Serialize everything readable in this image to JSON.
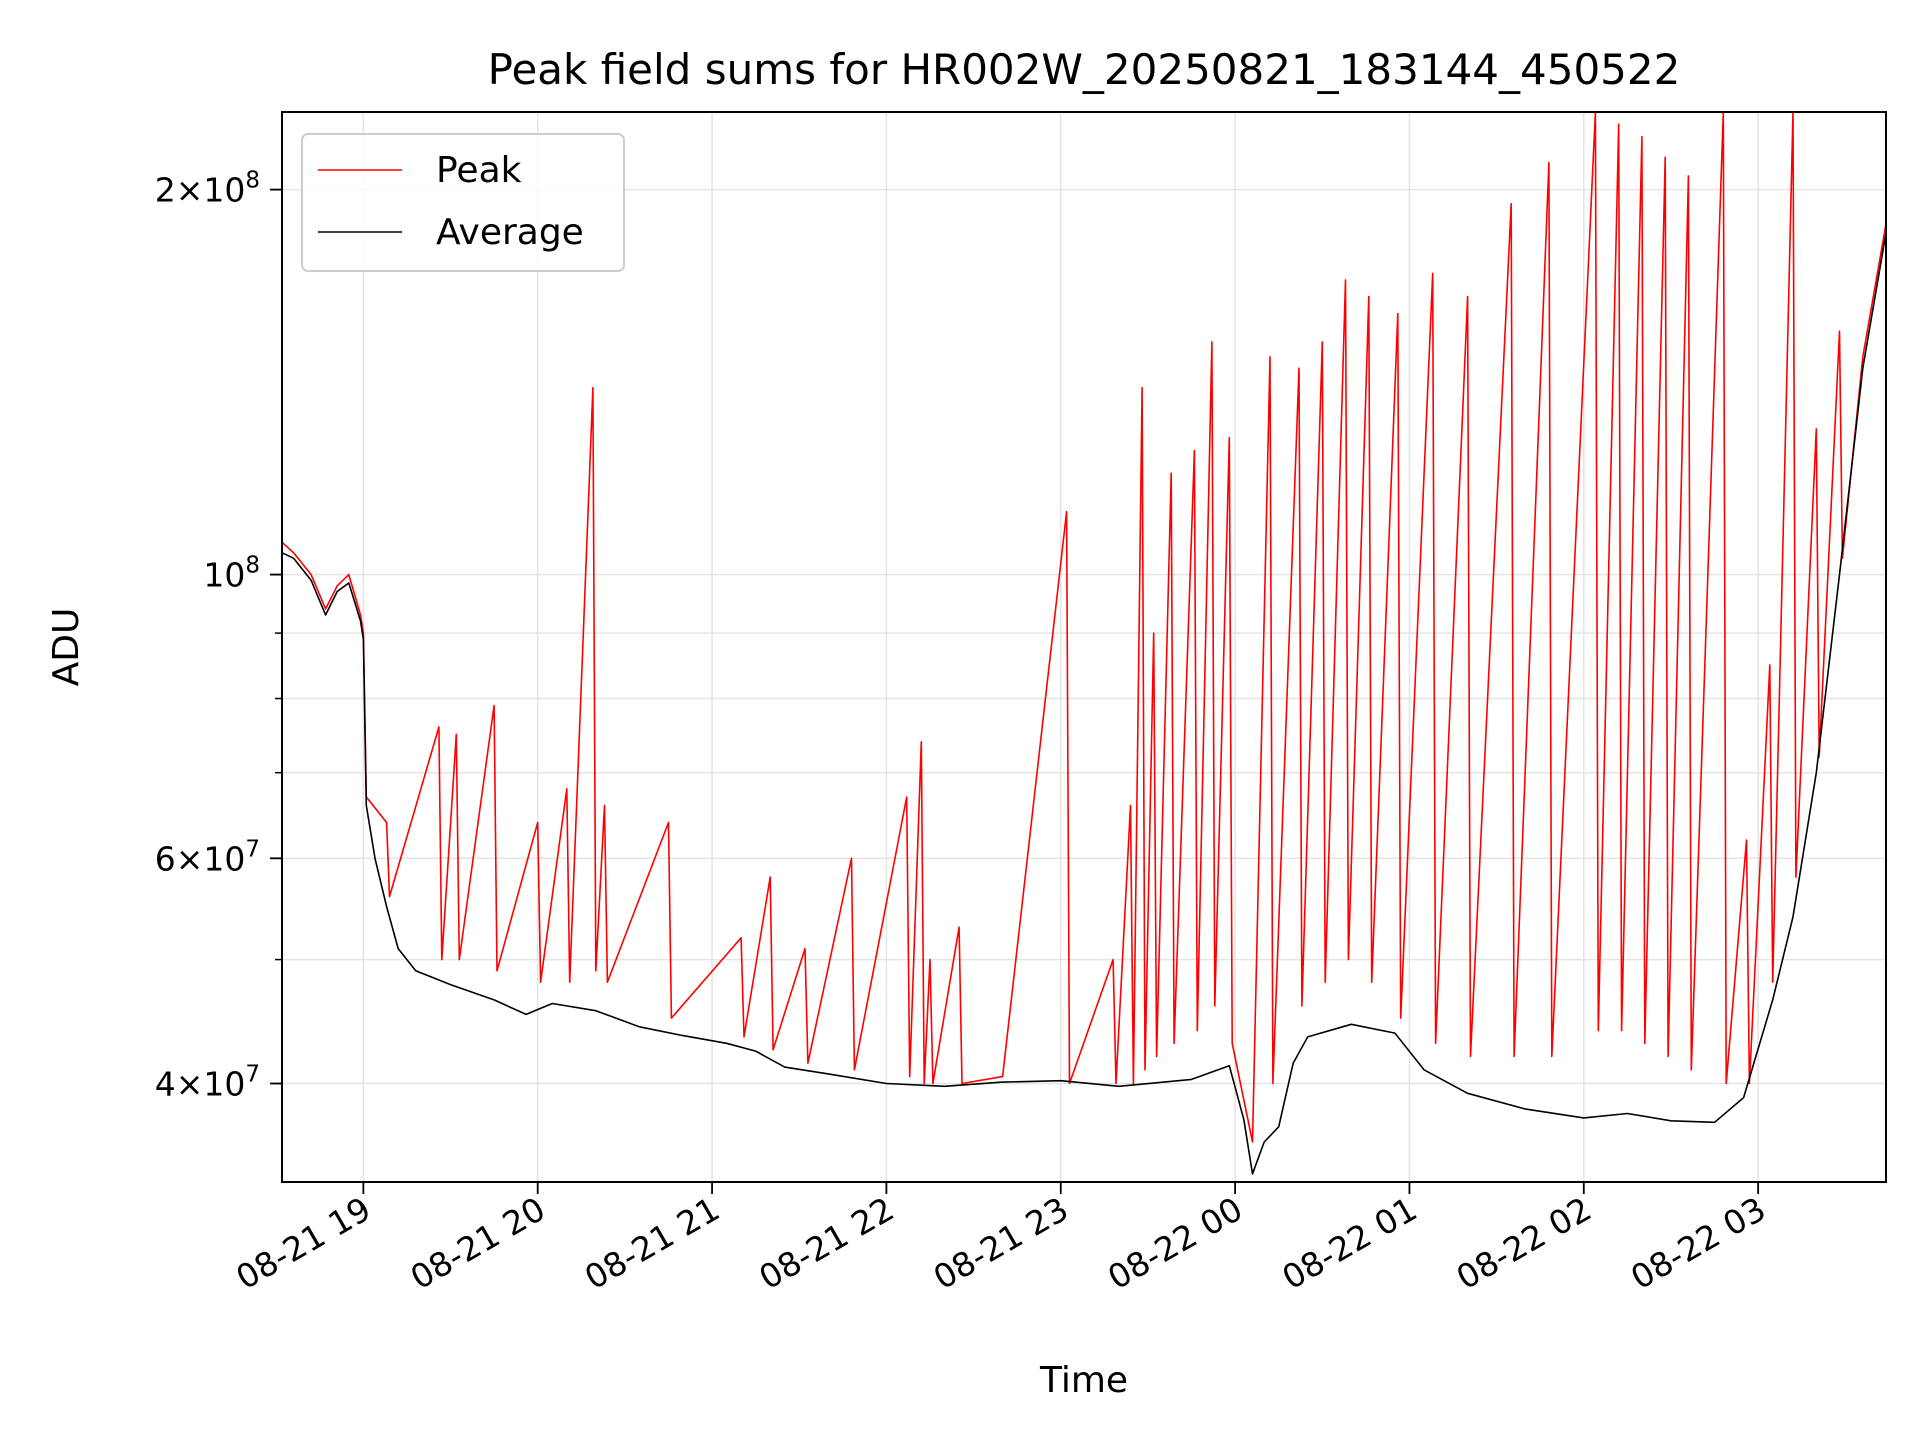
{
  "chart_data": {
    "type": "line",
    "title": "Peak field sums for HR002W_20250821_183144_450522",
    "xlabel": "Time",
    "ylabel": "ADU",
    "yscale": "log",
    "ylim": [
      33500000,
      230000000
    ],
    "xlim": [
      "2025-08-21 18:32",
      "2025-08-22 03:44"
    ],
    "grid": true,
    "legend_position": "top-left",
    "x_ticks": [
      {
        "label": "08-21 19",
        "time": "2025-08-21 19:00"
      },
      {
        "label": "08-21 20",
        "time": "2025-08-21 20:00"
      },
      {
        "label": "08-21 21",
        "time": "2025-08-21 21:00"
      },
      {
        "label": "08-21 22",
        "time": "2025-08-21 22:00"
      },
      {
        "label": "08-21 23",
        "time": "2025-08-21 23:00"
      },
      {
        "label": "08-22 00",
        "time": "2025-08-22 00:00"
      },
      {
        "label": "08-22 01",
        "time": "2025-08-22 01:00"
      },
      {
        "label": "08-22 02",
        "time": "2025-08-22 02:00"
      },
      {
        "label": "08-22 03",
        "time": "2025-08-22 03:00"
      }
    ],
    "y_ticks": [
      {
        "value": 40000000,
        "mant": "4",
        "exp": "7"
      },
      {
        "value": 60000000,
        "mant": "6",
        "exp": "7"
      },
      {
        "value": 100000000,
        "mant": "",
        "exp": "8"
      },
      {
        "value": 200000000,
        "mant": "2",
        "exp": "8"
      }
    ],
    "series": [
      {
        "name": "Average",
        "color": "#000000",
        "points": [
          [
            "2025-08-21 18:32",
            104000000
          ],
          [
            "2025-08-21 18:36",
            103000000
          ],
          [
            "2025-08-21 18:42",
            99000000
          ],
          [
            "2025-08-21 18:47",
            93000000
          ],
          [
            "2025-08-21 18:51",
            97000000
          ],
          [
            "2025-08-21 18:55",
            98500000
          ],
          [
            "2025-08-21 18:59",
            92000000
          ],
          [
            "2025-08-21 19:00",
            89000000
          ],
          [
            "2025-08-21 19:01",
            66000000
          ],
          [
            "2025-08-21 19:04",
            60000000
          ],
          [
            "2025-08-21 19:08",
            55000000
          ],
          [
            "2025-08-21 19:12",
            51000000
          ],
          [
            "2025-08-21 19:18",
            49000000
          ],
          [
            "2025-08-21 19:30",
            47800000
          ],
          [
            "2025-08-21 19:45",
            46500000
          ],
          [
            "2025-08-21 19:56",
            45300000
          ],
          [
            "2025-08-21 20:05",
            46200000
          ],
          [
            "2025-08-21 20:20",
            45600000
          ],
          [
            "2025-08-21 20:35",
            44300000
          ],
          [
            "2025-08-21 20:50",
            43600000
          ],
          [
            "2025-08-21 21:05",
            43000000
          ],
          [
            "2025-08-21 21:15",
            42400000
          ],
          [
            "2025-08-21 21:25",
            41200000
          ],
          [
            "2025-08-21 21:40",
            40700000
          ],
          [
            "2025-08-21 22:00",
            40000000
          ],
          [
            "2025-08-21 22:20",
            39800000
          ],
          [
            "2025-08-21 22:40",
            40100000
          ],
          [
            "2025-08-21 23:00",
            40200000
          ],
          [
            "2025-08-21 23:20",
            39800000
          ],
          [
            "2025-08-21 23:45",
            40300000
          ],
          [
            "2025-08-21 23:58",
            41300000
          ],
          [
            "2025-08-22 00:03",
            37500000
          ],
          [
            "2025-08-22 00:06",
            34000000
          ],
          [
            "2025-08-22 00:10",
            36000000
          ],
          [
            "2025-08-22 00:15",
            37000000
          ],
          [
            "2025-08-22 00:20",
            41500000
          ],
          [
            "2025-08-22 00:25",
            43500000
          ],
          [
            "2025-08-22 00:40",
            44500000
          ],
          [
            "2025-08-22 00:55",
            43800000
          ],
          [
            "2025-08-22 01:05",
            41000000
          ],
          [
            "2025-08-22 01:20",
            39300000
          ],
          [
            "2025-08-22 01:40",
            38200000
          ],
          [
            "2025-08-22 02:00",
            37600000
          ],
          [
            "2025-08-22 02:15",
            37900000
          ],
          [
            "2025-08-22 02:30",
            37400000
          ],
          [
            "2025-08-22 02:45",
            37300000
          ],
          [
            "2025-08-22 02:55",
            39000000
          ],
          [
            "2025-08-22 03:05",
            46500000
          ],
          [
            "2025-08-22 03:12",
            54000000
          ],
          [
            "2025-08-22 03:20",
            70000000
          ],
          [
            "2025-08-22 03:28",
            100000000
          ],
          [
            "2025-08-22 03:36",
            145000000
          ],
          [
            "2025-08-22 03:44",
            185000000
          ]
        ]
      },
      {
        "name": "Peak",
        "color": "#ff0000",
        "points": [
          [
            "2025-08-21 18:32",
            106000000
          ],
          [
            "2025-08-21 18:36",
            104000000
          ],
          [
            "2025-08-21 18:42",
            100000000
          ],
          [
            "2025-08-21 18:47",
            94000000
          ],
          [
            "2025-08-21 18:51",
            98000000
          ],
          [
            "2025-08-21 18:55",
            100000000
          ],
          [
            "2025-08-21 18:59",
            93000000
          ],
          [
            "2025-08-21 19:00",
            90000000
          ],
          [
            "2025-08-21 19:01",
            67000000
          ],
          [
            "2025-08-21 19:08",
            64000000
          ],
          [
            "2025-08-21 19:09",
            56000000
          ],
          [
            "2025-08-21 19:26",
            76000000
          ],
          [
            "2025-08-21 19:27",
            50000000
          ],
          [
            "2025-08-21 19:32",
            75000000
          ],
          [
            "2025-08-21 19:33",
            50000000
          ],
          [
            "2025-08-21 19:45",
            79000000
          ],
          [
            "2025-08-21 19:46",
            49000000
          ],
          [
            "2025-08-21 20:00",
            64000000
          ],
          [
            "2025-08-21 20:01",
            48000000
          ],
          [
            "2025-08-21 20:10",
            68000000
          ],
          [
            "2025-08-21 20:11",
            48000000
          ],
          [
            "2025-08-21 20:19",
            140000000
          ],
          [
            "2025-08-21 20:20",
            49000000
          ],
          [
            "2025-08-21 20:23",
            66000000
          ],
          [
            "2025-08-21 20:24",
            48000000
          ],
          [
            "2025-08-21 20:45",
            64000000
          ],
          [
            "2025-08-21 20:46",
            45000000
          ],
          [
            "2025-08-21 21:10",
            52000000
          ],
          [
            "2025-08-21 21:11",
            43500000
          ],
          [
            "2025-08-21 21:20",
            58000000
          ],
          [
            "2025-08-21 21:21",
            42500000
          ],
          [
            "2025-08-21 21:32",
            51000000
          ],
          [
            "2025-08-21 21:33",
            41500000
          ],
          [
            "2025-08-21 21:48",
            60000000
          ],
          [
            "2025-08-21 21:49",
            41000000
          ],
          [
            "2025-08-21 22:07",
            67000000
          ],
          [
            "2025-08-21 22:08",
            40500000
          ],
          [
            "2025-08-21 22:12",
            74000000
          ],
          [
            "2025-08-21 22:13",
            40000000
          ],
          [
            "2025-08-21 22:15",
            50000000
          ],
          [
            "2025-08-21 22:16",
            40000000
          ],
          [
            "2025-08-21 22:25",
            53000000
          ],
          [
            "2025-08-21 22:26",
            40000000
          ],
          [
            "2025-08-21 22:40",
            40500000
          ],
          [
            "2025-08-21 23:02",
            112000000
          ],
          [
            "2025-08-21 23:03",
            40000000
          ],
          [
            "2025-08-21 23:18",
            50000000
          ],
          [
            "2025-08-21 23:19",
            40000000
          ],
          [
            "2025-08-21 23:24",
            66000000
          ],
          [
            "2025-08-21 23:25",
            40000000
          ],
          [
            "2025-08-21 23:28",
            140000000
          ],
          [
            "2025-08-21 23:29",
            41000000
          ],
          [
            "2025-08-21 23:32",
            90000000
          ],
          [
            "2025-08-21 23:33",
            42000000
          ],
          [
            "2025-08-21 23:38",
            120000000
          ],
          [
            "2025-08-21 23:39",
            43000000
          ],
          [
            "2025-08-21 23:46",
            125000000
          ],
          [
            "2025-08-21 23:47",
            44000000
          ],
          [
            "2025-08-21 23:52",
            152000000
          ],
          [
            "2025-08-21 23:53",
            46000000
          ],
          [
            "2025-08-21 23:58",
            128000000
          ],
          [
            "2025-08-21 23:59",
            43000000
          ],
          [
            "2025-08-22 00:06",
            36000000
          ],
          [
            "2025-08-22 00:12",
            148000000
          ],
          [
            "2025-08-22 00:13",
            40000000
          ],
          [
            "2025-08-22 00:22",
            145000000
          ],
          [
            "2025-08-22 00:23",
            46000000
          ],
          [
            "2025-08-22 00:30",
            152000000
          ],
          [
            "2025-08-22 00:31",
            48000000
          ],
          [
            "2025-08-22 00:38",
            170000000
          ],
          [
            "2025-08-22 00:39",
            50000000
          ],
          [
            "2025-08-22 00:46",
            165000000
          ],
          [
            "2025-08-22 00:47",
            48000000
          ],
          [
            "2025-08-22 00:56",
            160000000
          ],
          [
            "2025-08-22 00:57",
            45000000
          ],
          [
            "2025-08-22 01:08",
            172000000
          ],
          [
            "2025-08-22 01:09",
            43000000
          ],
          [
            "2025-08-22 01:20",
            165000000
          ],
          [
            "2025-08-22 01:21",
            42000000
          ],
          [
            "2025-08-22 01:35",
            195000000
          ],
          [
            "2025-08-22 01:36",
            42000000
          ],
          [
            "2025-08-22 01:48",
            210000000
          ],
          [
            "2025-08-22 01:49",
            42000000
          ],
          [
            "2025-08-22 02:04",
            230000000
          ],
          [
            "2025-08-22 02:05",
            44000000
          ],
          [
            "2025-08-22 02:12",
            225000000
          ],
          [
            "2025-08-22 02:13",
            44000000
          ],
          [
            "2025-08-22 02:20",
            220000000
          ],
          [
            "2025-08-22 02:21",
            43000000
          ],
          [
            "2025-08-22 02:28",
            212000000
          ],
          [
            "2025-08-22 02:29",
            42000000
          ],
          [
            "2025-08-22 02:36",
            205000000
          ],
          [
            "2025-08-22 02:37",
            41000000
          ],
          [
            "2025-08-22 02:48",
            230000000
          ],
          [
            "2025-08-22 02:49",
            40000000
          ],
          [
            "2025-08-22 02:56",
            62000000
          ],
          [
            "2025-08-22 02:57",
            40000000
          ],
          [
            "2025-08-22 03:04",
            85000000
          ],
          [
            "2025-08-22 03:05",
            48000000
          ],
          [
            "2025-08-22 03:12",
            230000000
          ],
          [
            "2025-08-22 03:13",
            58000000
          ],
          [
            "2025-08-22 03:20",
            130000000
          ],
          [
            "2025-08-22 03:21",
            72000000
          ],
          [
            "2025-08-22 03:28",
            155000000
          ],
          [
            "2025-08-22 03:29",
            103000000
          ],
          [
            "2025-08-22 03:36",
            148000000
          ],
          [
            "2025-08-22 03:44",
            188000000
          ]
        ]
      }
    ]
  }
}
